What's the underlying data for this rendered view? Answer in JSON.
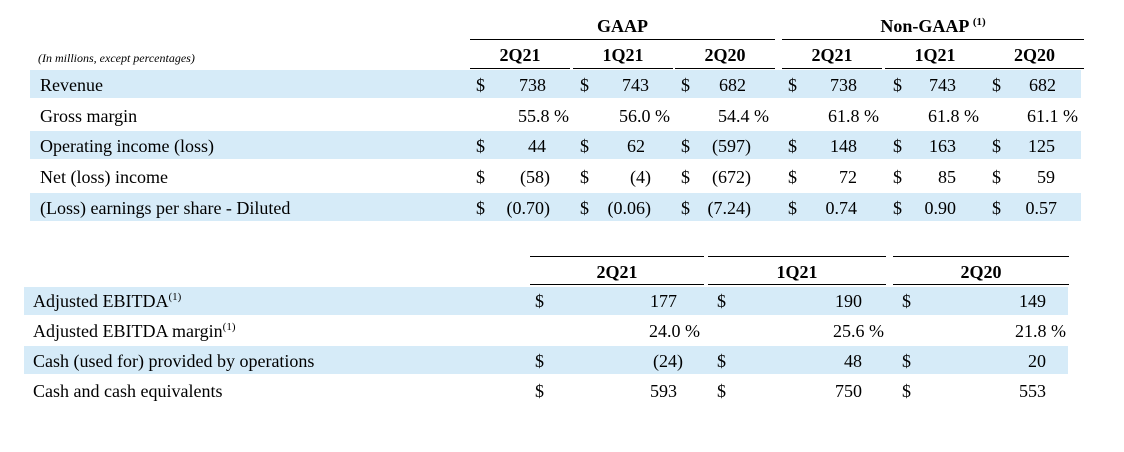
{
  "table1": {
    "note": "(In millions, except percentages)",
    "group_gaap": "GAAP",
    "group_nongaap": "Non-GAAP",
    "group_nongaap_sup": "(1)",
    "columns": [
      "2Q21",
      "1Q21",
      "2Q20",
      "2Q21",
      "1Q21",
      "2Q20"
    ],
    "rows": [
      {
        "label": "Revenue",
        "cells": [
          [
            "$",
            "738"
          ],
          [
            "$",
            "743"
          ],
          [
            "$",
            "682"
          ],
          [
            "$",
            "738"
          ],
          [
            "$",
            "743"
          ],
          [
            "$",
            "682"
          ]
        ]
      },
      {
        "label": "Gross margin",
        "cells": [
          [
            "",
            "55.8 %"
          ],
          [
            "",
            "56.0 %"
          ],
          [
            "",
            "54.4 %"
          ],
          [
            "",
            "61.8 %"
          ],
          [
            "",
            "61.8 %"
          ],
          [
            "",
            "61.1 %"
          ]
        ]
      },
      {
        "label": "Operating income (loss)",
        "cells": [
          [
            "$",
            "44"
          ],
          [
            "$",
            "62"
          ],
          [
            "$",
            "(597)"
          ],
          [
            "$",
            "148"
          ],
          [
            "$",
            "163"
          ],
          [
            "$",
            "125"
          ]
        ]
      },
      {
        "label": "Net (loss) income",
        "cells": [
          [
            "$",
            "(58)"
          ],
          [
            "$",
            "(4)"
          ],
          [
            "$",
            "(672)"
          ],
          [
            "$",
            "72"
          ],
          [
            "$",
            "85"
          ],
          [
            "$",
            "59"
          ]
        ]
      },
      {
        "label": "(Loss) earnings per share - Diluted",
        "cells": [
          [
            "$",
            "(0.70)"
          ],
          [
            "$",
            "(0.06)"
          ],
          [
            "$",
            "(7.24)"
          ],
          [
            "$",
            "0.74"
          ],
          [
            "$",
            "0.90"
          ],
          [
            "$",
            "0.57"
          ]
        ]
      }
    ]
  },
  "table2": {
    "columns": [
      "2Q21",
      "1Q21",
      "2Q20"
    ],
    "rows": [
      {
        "label": "Adjusted EBITDA",
        "sup": "(1)",
        "cells": [
          [
            "$",
            "177"
          ],
          [
            "$",
            "190"
          ],
          [
            "$",
            "149"
          ]
        ]
      },
      {
        "label": "Adjusted EBITDA margin",
        "sup": "(1)",
        "cells": [
          [
            "",
            "24.0 %"
          ],
          [
            "",
            "25.6 %"
          ],
          [
            "",
            "21.8 %"
          ]
        ]
      },
      {
        "label": "Cash (used for) provided by operations",
        "sup": "",
        "cells": [
          [
            "$",
            "(24)"
          ],
          [
            "$",
            "48"
          ],
          [
            "$",
            "20"
          ]
        ]
      },
      {
        "label": "Cash and cash equivalents",
        "sup": "",
        "cells": [
          [
            "$",
            "593"
          ],
          [
            "$",
            "750"
          ],
          [
            "$",
            "553"
          ]
        ]
      }
    ]
  }
}
